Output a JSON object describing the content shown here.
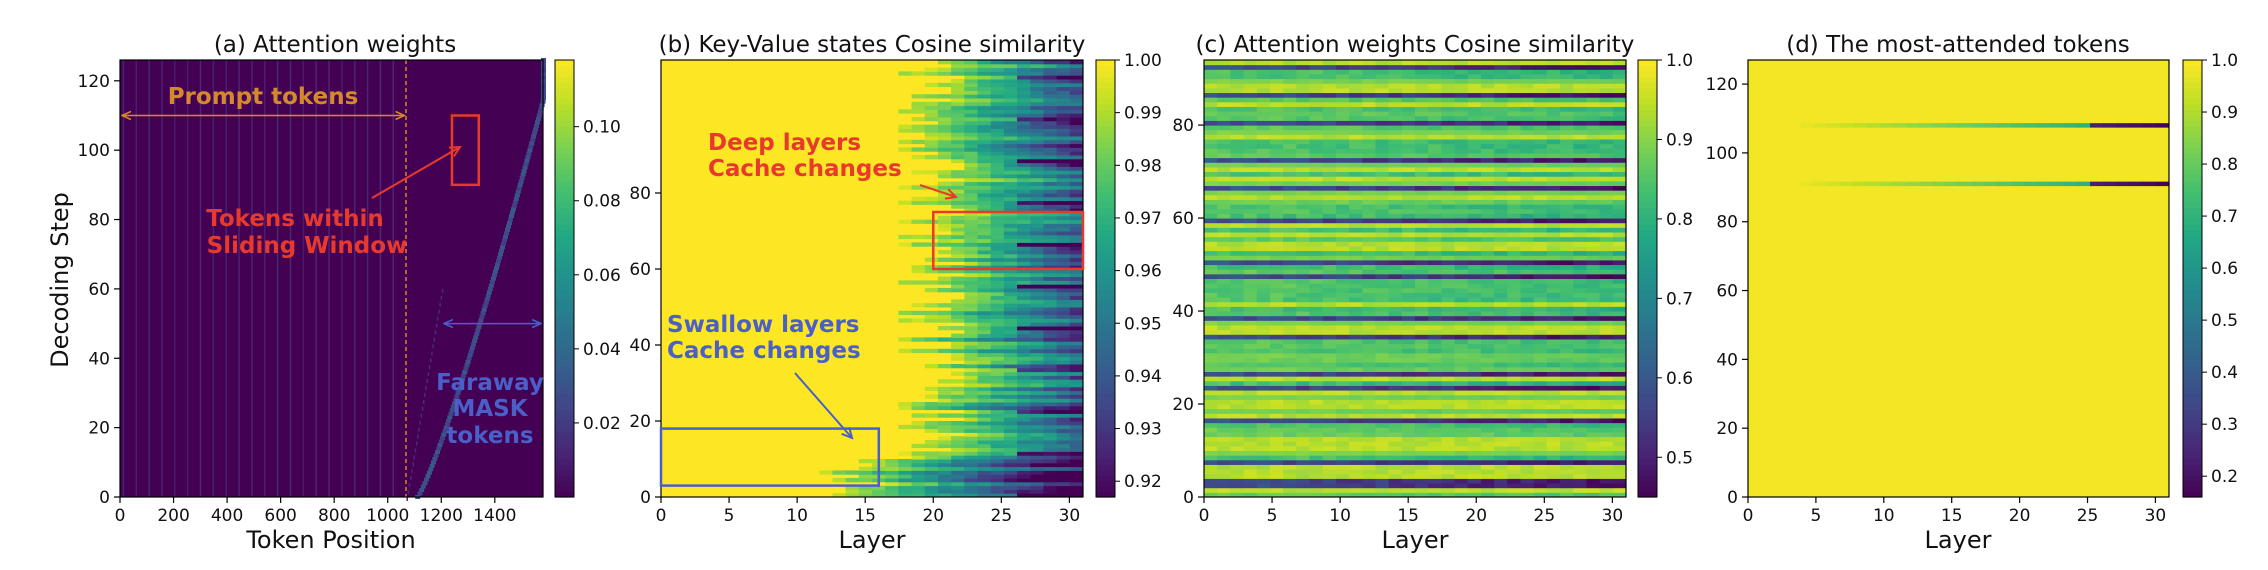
{
  "colors": {
    "viridis": [
      "#440154",
      "#482475",
      "#414487",
      "#355f8d",
      "#2a788e",
      "#21918c",
      "#22a884",
      "#44bf70",
      "#7ad151",
      "#bddf26",
      "#fde725"
    ],
    "annotation_orange": "#d4892c",
    "annotation_red": "#e83a2c",
    "annotation_blue": "#4a5fc8"
  },
  "chart_data": [
    {
      "id": "a",
      "type": "heatmap",
      "title": "(a) Attention weights",
      "xlabel": "Token Position",
      "ylabel": "Decoding Step",
      "xlim": [
        0,
        1580
      ],
      "ylim": [
        0,
        126
      ],
      "xticks": [
        0,
        200,
        400,
        600,
        800,
        1000,
        1200,
        1400
      ],
      "yticks": [
        0,
        20,
        40,
        60,
        80,
        100,
        120
      ],
      "colorbar": {
        "range": [
          0,
          0.118
        ],
        "ticks": [
          0.02,
          0.04,
          0.06,
          0.08,
          0.1
        ],
        "tick_labels": [
          "0.02",
          "0.04",
          "0.06",
          "0.08",
          "0.10"
        ]
      },
      "prompt_boundary": 1070,
      "diagonal": {
        "x_start": 1070,
        "y_start": 0,
        "x_end": 1580,
        "y_end": 126
      },
      "annotations": [
        {
          "text": "Prompt tokens",
          "color": "orange"
        },
        {
          "text": "Tokens within",
          "color": "red"
        },
        {
          "text": "Sliding Window",
          "color": "red"
        },
        {
          "text": "Faraway",
          "color": "blue"
        },
        {
          "text": "MASK",
          "color": "blue"
        },
        {
          "text": "tokens",
          "color": "blue"
        }
      ],
      "highlight_box": {
        "x0": 1240,
        "x1": 1340,
        "y0": 90,
        "y1": 110
      },
      "prompt_arrow": {
        "x0": 0,
        "x1": 1070,
        "y": 110
      },
      "mask_arrow": {
        "x0": 1210,
        "x1": 1580,
        "y": 50
      }
    },
    {
      "id": "b",
      "type": "heatmap",
      "title": "(b) Key-Value states Cosine similarity",
      "xlabel": "Layer",
      "ylabel": "",
      "xlim": [
        0,
        31
      ],
      "ylim": [
        0,
        115
      ],
      "xticks": [
        0,
        5,
        10,
        15,
        20,
        25,
        30
      ],
      "yticks": [
        0,
        20,
        40,
        60,
        80
      ],
      "colorbar": {
        "range": [
          0.917,
          1.0
        ],
        "ticks": [
          0.92,
          0.93,
          0.94,
          0.95,
          0.96,
          0.97,
          0.98,
          0.99,
          1.0
        ],
        "tick_labels": [
          "0.92",
          "0.93",
          "0.94",
          "0.95",
          "0.96",
          "0.97",
          "0.98",
          "0.99",
          "1.00"
        ]
      },
      "annotations": [
        {
          "text": "Deep layers",
          "color": "red"
        },
        {
          "text": "Cache changes",
          "color": "red"
        },
        {
          "text": "Swallow layers",
          "color": "blue"
        },
        {
          "text": "Cache changes",
          "color": "blue"
        }
      ],
      "deep_box": {
        "x0": 20,
        "x1": 31,
        "y0": 60,
        "y1": 75
      },
      "shallow_box": {
        "x0": 0,
        "x1": 16,
        "y0": 3,
        "y1": 18
      }
    },
    {
      "id": "c",
      "type": "heatmap",
      "title": "(c) Attention weights Cosine similarity",
      "xlabel": "Layer",
      "ylabel": "",
      "xlim": [
        0,
        31
      ],
      "ylim": [
        0,
        94
      ],
      "xticks": [
        0,
        5,
        10,
        15,
        20,
        25,
        30
      ],
      "yticks": [
        0,
        20,
        40,
        60,
        80
      ],
      "colorbar": {
        "range": [
          0.45,
          1.0
        ],
        "ticks": [
          0.5,
          0.6,
          0.7,
          0.8,
          0.9,
          1.0
        ],
        "tick_labels": [
          "0.5",
          "0.6",
          "0.7",
          "0.8",
          "0.9",
          "1.0"
        ]
      },
      "dark_rows": [
        2,
        3,
        7,
        16,
        23,
        26,
        34,
        38,
        47,
        50,
        59,
        66,
        72,
        80,
        86,
        92
      ]
    },
    {
      "id": "d",
      "type": "heatmap",
      "title": "(d) The most-attended tokens",
      "xlabel": "Layer",
      "ylabel": "",
      "xlim": [
        0,
        31
      ],
      "ylim": [
        0,
        127
      ],
      "xticks": [
        0,
        5,
        10,
        15,
        20,
        25,
        30
      ],
      "yticks": [
        0,
        20,
        40,
        60,
        80,
        100,
        120
      ],
      "colorbar": {
        "range": [
          0.16,
          1.0
        ],
        "ticks": [
          0.2,
          0.3,
          0.4,
          0.5,
          0.6,
          0.7,
          0.8,
          0.9,
          1.0
        ],
        "tick_labels": [
          "0.2",
          "0.3",
          "0.4",
          "0.5",
          "0.6",
          "0.7",
          "0.8",
          "0.9",
          "1.0"
        ]
      },
      "stripe_rows": [
        91,
        108
      ],
      "stripe_start_layer": 4
    }
  ]
}
